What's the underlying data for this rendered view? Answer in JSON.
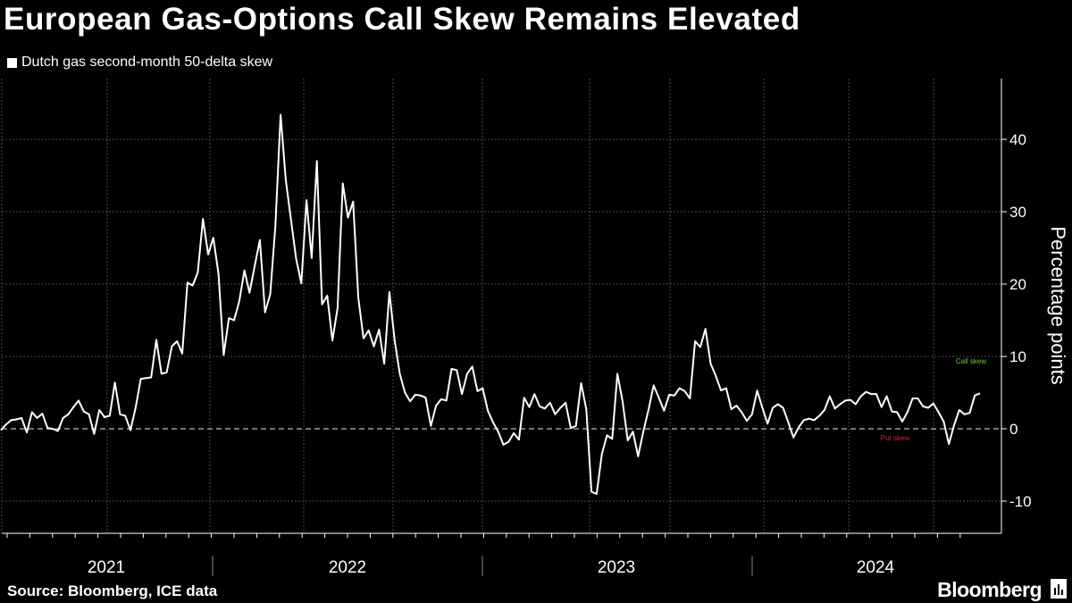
{
  "title": "European Gas-Options Call Skew Remains Elevated",
  "source": "Source: Bloomberg, ICE data",
  "brand": "Bloomberg",
  "chart_data": {
    "type": "line",
    "legend": [
      "Dutch gas second-month 50-delta skew"
    ],
    "ylabel": "Percentage points",
    "xlabel": "",
    "ylim": [
      -15,
      48
    ],
    "yticks": [
      -10,
      0,
      10,
      20,
      30,
      40
    ],
    "x_labels": [
      "2021",
      "2022",
      "2023",
      "2024"
    ],
    "reference_line": 0,
    "annotations": [
      {
        "text": "Call skew",
        "color": "#6ec93f"
      },
      {
        "text": "Put skew",
        "color": "#d8203a"
      }
    ],
    "series": [
      {
        "name": "Dutch gas second-month 50-delta skew",
        "color": "#ffffff",
        "values": [
          -0.2,
          0.6,
          1.2,
          1.3,
          1.5,
          -0.5,
          2.3,
          1.5,
          2.1,
          0.1,
          0.0,
          -0.3,
          1.5,
          2.0,
          3.0,
          3.9,
          2.4,
          2.0,
          -0.7,
          2.6,
          1.6,
          1.8,
          6.4,
          2.0,
          1.8,
          -0.2,
          2.9,
          6.9,
          7.0,
          7.1,
          12.3,
          7.6,
          7.8,
          11.4,
          12.1,
          10.4,
          20.2,
          19.8,
          21.6,
          29.0,
          24.1,
          26.4,
          21.4,
          10.2,
          15.3,
          15.0,
          17.6,
          21.9,
          18.8,
          22.5,
          26.1,
          16.1,
          18.6,
          28.1,
          43.4,
          34.4,
          28.9,
          23.5,
          20.1,
          31.6,
          23.6,
          37.0,
          17.2,
          18.4,
          12.2,
          16.7,
          33.9,
          29.2,
          31.4,
          18.1,
          12.5,
          13.6,
          11.4,
          13.7,
          9.0,
          18.9,
          12.3,
          7.6,
          5.0,
          3.8,
          4.7,
          4.6,
          4.3,
          0.4,
          3.2,
          4.1,
          3.9,
          8.3,
          8.1,
          4.8,
          7.6,
          8.6,
          5.2,
          5.6,
          2.5,
          0.9,
          -0.4,
          -2.2,
          -1.8,
          -0.6,
          -1.5,
          4.3,
          3.0,
          4.8,
          3.1,
          2.8,
          3.6,
          2.0,
          2.9,
          3.6,
          0.1,
          0.4,
          6.3,
          2.7,
          -8.7,
          -9.0,
          -3.5,
          -0.9,
          -1.4,
          7.6,
          3.8,
          -1.6,
          -0.4,
          -3.8,
          -0.4,
          2.6,
          6.0,
          4.3,
          2.5,
          4.7,
          4.6,
          5.6,
          5.2,
          4.2,
          12.1,
          11.3,
          13.8,
          9.0,
          7.3,
          5.3,
          5.6,
          2.7,
          3.2,
          2.3,
          1.1,
          2.0,
          5.3,
          2.9,
          0.7,
          2.9,
          3.4,
          2.9,
          0.9,
          -1.2,
          0.2,
          1.2,
          1.4,
          1.2,
          1.8,
          2.6,
          4.5,
          2.8,
          3.4,
          3.9,
          4.0,
          3.4,
          4.5,
          5.1,
          4.8,
          4.8,
          3.0,
          4.5,
          2.4,
          2.3,
          1.0,
          2.3,
          4.2,
          4.2,
          3.1,
          2.9,
          3.5,
          2.3,
          1.0,
          -2.1,
          0.5,
          2.6,
          2.0,
          2.2,
          4.6,
          4.9
        ]
      }
    ]
  }
}
